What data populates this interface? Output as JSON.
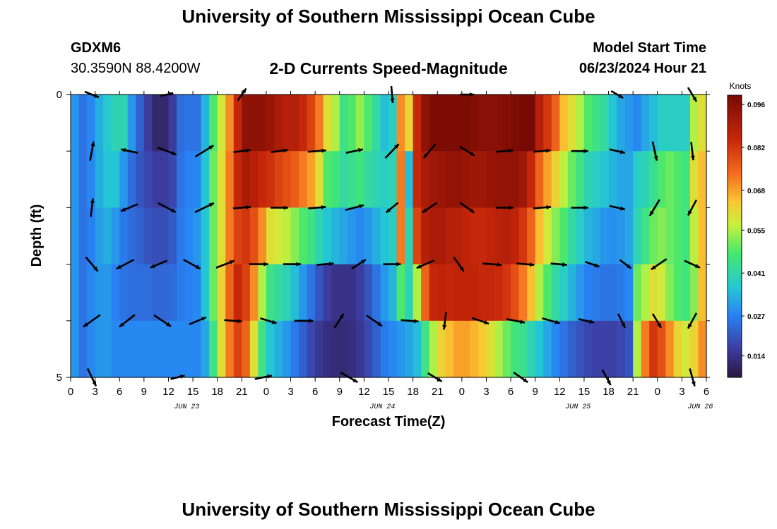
{
  "header": {
    "title": "University of Southern Mississippi Ocean Cube",
    "station": "GDXM6",
    "coordinates": "30.3590N  88.4200W",
    "subtitle": "2-D Currents Speed-Magnitude",
    "model_start_label": "Model Start Time",
    "model_start_value": "06/23/2024 Hour 21",
    "footer_title": "University of Southern Mississippi Ocean Cube"
  },
  "chart_data": {
    "type": "heatmap",
    "title": "2-D Currents Speed-Magnitude",
    "xlabel": "Forecast Time(Z)",
    "ylabel": "Depth (ft)",
    "x_tick_labels": [
      "0",
      "3",
      "6",
      "9",
      "12",
      "15",
      "18",
      "21",
      "0",
      "3",
      "6",
      "9",
      "12",
      "15",
      "18",
      "21",
      "0",
      "3",
      "6",
      "9",
      "12",
      "15",
      "18",
      "21",
      "0",
      "3",
      "6"
    ],
    "x_date_labels": [
      {
        "label": "JUN 23",
        "tick": 4
      },
      {
        "label": "JUN 24",
        "tick": 12
      },
      {
        "label": "JUN 25",
        "tick": 20
      },
      {
        "label": "JUN 26",
        "tick": 25
      }
    ],
    "y_tick_labels": [
      {
        "label": "0",
        "value": 0
      },
      {
        "label": "5",
        "value": 5
      }
    ],
    "ylim": [
      0,
      5
    ],
    "x_range_hours": [
      0,
      78
    ],
    "depth_levels": 5,
    "time_steps": 78,
    "colorbar": {
      "unit": "Knots",
      "tick_labels": [
        "0.096",
        "0.082",
        "0.068",
        "0.055",
        "0.041",
        "0.027",
        "0.014"
      ],
      "min": 0.007,
      "max": 0.099
    },
    "speed_knots": [
      [
        0.03,
        0.025,
        0.028,
        0.033,
        0.037,
        0.04,
        0.04,
        0.03,
        0.022,
        0.016,
        0.011,
        0.011,
        0.016,
        0.024,
        0.025,
        0.025,
        0.034,
        0.048,
        0.058,
        0.07,
        0.085,
        0.095,
        0.095,
        0.095,
        0.093,
        0.09,
        0.088,
        0.088,
        0.085,
        0.08,
        0.072,
        0.06,
        0.055,
        0.045,
        0.048,
        0.053,
        0.048,
        0.042,
        0.035,
        0.038,
        0.07,
        0.062,
        0.085,
        0.095,
        0.098,
        0.098,
        0.098,
        0.098,
        0.098,
        0.097,
        0.096,
        0.096,
        0.096,
        0.097,
        0.098,
        0.099,
        0.099,
        0.088,
        0.082,
        0.075,
        0.065,
        0.06,
        0.055,
        0.048,
        0.045,
        0.042,
        0.036,
        0.032,
        0.03,
        0.028,
        0.032,
        0.035,
        0.038,
        0.038,
        0.038,
        0.038,
        0.055,
        0.06
      ],
      [
        0.03,
        0.025,
        0.028,
        0.033,
        0.036,
        0.036,
        0.03,
        0.024,
        0.02,
        0.018,
        0.016,
        0.016,
        0.018,
        0.025,
        0.027,
        0.028,
        0.036,
        0.05,
        0.06,
        0.072,
        0.085,
        0.09,
        0.088,
        0.085,
        0.083,
        0.08,
        0.078,
        0.076,
        0.072,
        0.068,
        0.06,
        0.048,
        0.046,
        0.042,
        0.044,
        0.046,
        0.042,
        0.04,
        0.038,
        0.04,
        0.072,
        0.035,
        0.085,
        0.09,
        0.092,
        0.093,
        0.094,
        0.094,
        0.093,
        0.092,
        0.092,
        0.093,
        0.094,
        0.094,
        0.094,
        0.092,
        0.085,
        0.075,
        0.068,
        0.062,
        0.056,
        0.05,
        0.045,
        0.04,
        0.038,
        0.036,
        0.034,
        0.032,
        0.032,
        0.038,
        0.04,
        0.044,
        0.048,
        0.05,
        0.048,
        0.046,
        0.06,
        0.065
      ],
      [
        0.03,
        0.025,
        0.027,
        0.031,
        0.033,
        0.03,
        0.026,
        0.024,
        0.022,
        0.02,
        0.019,
        0.019,
        0.021,
        0.026,
        0.028,
        0.03,
        0.036,
        0.05,
        0.06,
        0.072,
        0.08,
        0.082,
        0.078,
        0.07,
        0.06,
        0.058,
        0.056,
        0.052,
        0.048,
        0.045,
        0.04,
        0.036,
        0.034,
        0.032,
        0.03,
        0.028,
        0.03,
        0.033,
        0.036,
        0.038,
        0.072,
        0.04,
        0.08,
        0.088,
        0.09,
        0.09,
        0.088,
        0.088,
        0.086,
        0.085,
        0.085,
        0.086,
        0.087,
        0.088,
        0.086,
        0.082,
        0.075,
        0.065,
        0.058,
        0.052,
        0.048,
        0.042,
        0.038,
        0.034,
        0.032,
        0.03,
        0.029,
        0.03,
        0.032,
        0.04,
        0.045,
        0.05,
        0.052,
        0.05,
        0.048,
        0.046,
        0.056,
        0.065
      ],
      [
        0.03,
        0.025,
        0.028,
        0.03,
        0.03,
        0.027,
        0.025,
        0.024,
        0.024,
        0.024,
        0.023,
        0.023,
        0.024,
        0.026,
        0.027,
        0.028,
        0.036,
        0.05,
        0.062,
        0.075,
        0.085,
        0.08,
        0.07,
        0.055,
        0.045,
        0.042,
        0.04,
        0.035,
        0.03,
        0.025,
        0.02,
        0.016,
        0.014,
        0.014,
        0.014,
        0.016,
        0.02,
        0.025,
        0.03,
        0.034,
        0.048,
        0.04,
        0.055,
        0.075,
        0.085,
        0.086,
        0.085,
        0.086,
        0.086,
        0.086,
        0.085,
        0.085,
        0.084,
        0.082,
        0.078,
        0.072,
        0.065,
        0.055,
        0.048,
        0.042,
        0.038,
        0.034,
        0.03,
        0.027,
        0.026,
        0.025,
        0.025,
        0.026,
        0.028,
        0.05,
        0.055,
        0.06,
        0.058,
        0.052,
        0.048,
        0.046,
        0.052,
        0.065
      ],
      [
        0.03,
        0.025,
        0.028,
        0.03,
        0.03,
        0.028,
        0.028,
        0.028,
        0.028,
        0.028,
        0.028,
        0.028,
        0.028,
        0.028,
        0.028,
        0.028,
        0.032,
        0.045,
        0.06,
        0.072,
        0.08,
        0.075,
        0.06,
        0.045,
        0.036,
        0.033,
        0.03,
        0.026,
        0.022,
        0.018,
        0.015,
        0.013,
        0.012,
        0.012,
        0.013,
        0.015,
        0.018,
        0.022,
        0.026,
        0.028,
        0.03,
        0.032,
        0.035,
        0.045,
        0.055,
        0.062,
        0.065,
        0.068,
        0.068,
        0.066,
        0.064,
        0.06,
        0.055,
        0.05,
        0.046,
        0.044,
        0.04,
        0.036,
        0.032,
        0.028,
        0.025,
        0.022,
        0.02,
        0.018,
        0.017,
        0.017,
        0.017,
        0.018,
        0.02,
        0.055,
        0.072,
        0.082,
        0.078,
        0.07,
        0.062,
        0.058,
        0.062,
        0.07
      ]
    ],
    "vectors": [
      [
        [
          20,
          8
        ],
        [
          18,
          -4
        ],
        [
          12,
          -17
        ],
        [
          0,
          0
        ],
        [
          2,
          24
        ],
        [
          20,
          0
        ],
        [
          0,
          0
        ],
        [
          17,
          10
        ],
        [
          12,
          20
        ]
      ],
      [
        [
          5,
          -27
        ],
        [
          -24,
          -5
        ],
        [
          27,
          10
        ],
        [
          26,
          -16
        ],
        [
          24,
          -3
        ],
        [
          24,
          -3
        ],
        [
          26,
          -2
        ],
        [
          24,
          -5
        ],
        [
          19,
          -20
        ],
        [
          -17,
          20
        ],
        [
          21,
          13
        ],
        [
          24,
          -2
        ],
        [
          24,
          -2
        ],
        [
          24,
          0
        ],
        [
          22,
          5
        ],
        [
          6,
          27
        ],
        [
          3,
          26
        ]
      ],
      [
        [
          3,
          -26
        ],
        [
          -24,
          10
        ],
        [
          25,
          13
        ],
        [
          27,
          -13
        ],
        [
          25,
          -2
        ],
        [
          25,
          0
        ],
        [
          25,
          -2
        ],
        [
          26,
          -7
        ],
        [
          -17,
          14
        ],
        [
          -21,
          14
        ],
        [
          20,
          14
        ],
        [
          25,
          0
        ],
        [
          25,
          -2
        ],
        [
          24,
          0
        ],
        [
          22,
          5
        ],
        [
          -14,
          23
        ],
        [
          -12,
          22
        ]
      ],
      [
        [
          17,
          20
        ],
        [
          -25,
          13
        ],
        [
          -24,
          10
        ],
        [
          24,
          13
        ],
        [
          26,
          -10
        ],
        [
          27,
          0
        ],
        [
          25,
          0
        ],
        [
          24,
          -2
        ],
        [
          20,
          -13
        ],
        [
          25,
          0
        ],
        [
          -25,
          11
        ],
        [
          14,
          20
        ],
        [
          27,
          2
        ],
        [
          25,
          2
        ],
        [
          23,
          2
        ],
        [
          20,
          7
        ],
        [
          16,
          12
        ],
        [
          -22,
          15
        ],
        [
          22,
          10
        ]
      ],
      [
        [
          -24,
          17
        ],
        [
          -22,
          17
        ],
        [
          24,
          16
        ],
        [
          24,
          -10
        ],
        [
          25,
          2
        ],
        [
          23,
          7
        ],
        [
          27,
          0
        ],
        [
          13,
          -20
        ],
        [
          22,
          15
        ],
        [
          25,
          2
        ],
        [
          -3,
          25
        ],
        [
          24,
          8
        ],
        [
          26,
          5
        ],
        [
          25,
          7
        ],
        [
          22,
          5
        ],
        [
          10,
          20
        ],
        [
          12,
          20
        ],
        [
          -12,
          22
        ]
      ],
      [
        [
          12,
          25
        ],
        [
          20,
          -5
        ],
        [
          24,
          -5
        ],
        [
          24,
          14
        ],
        [
          20,
          12
        ],
        [
          20,
          14
        ],
        [
          12,
          22
        ],
        [
          7,
          25
        ]
      ]
    ]
  }
}
